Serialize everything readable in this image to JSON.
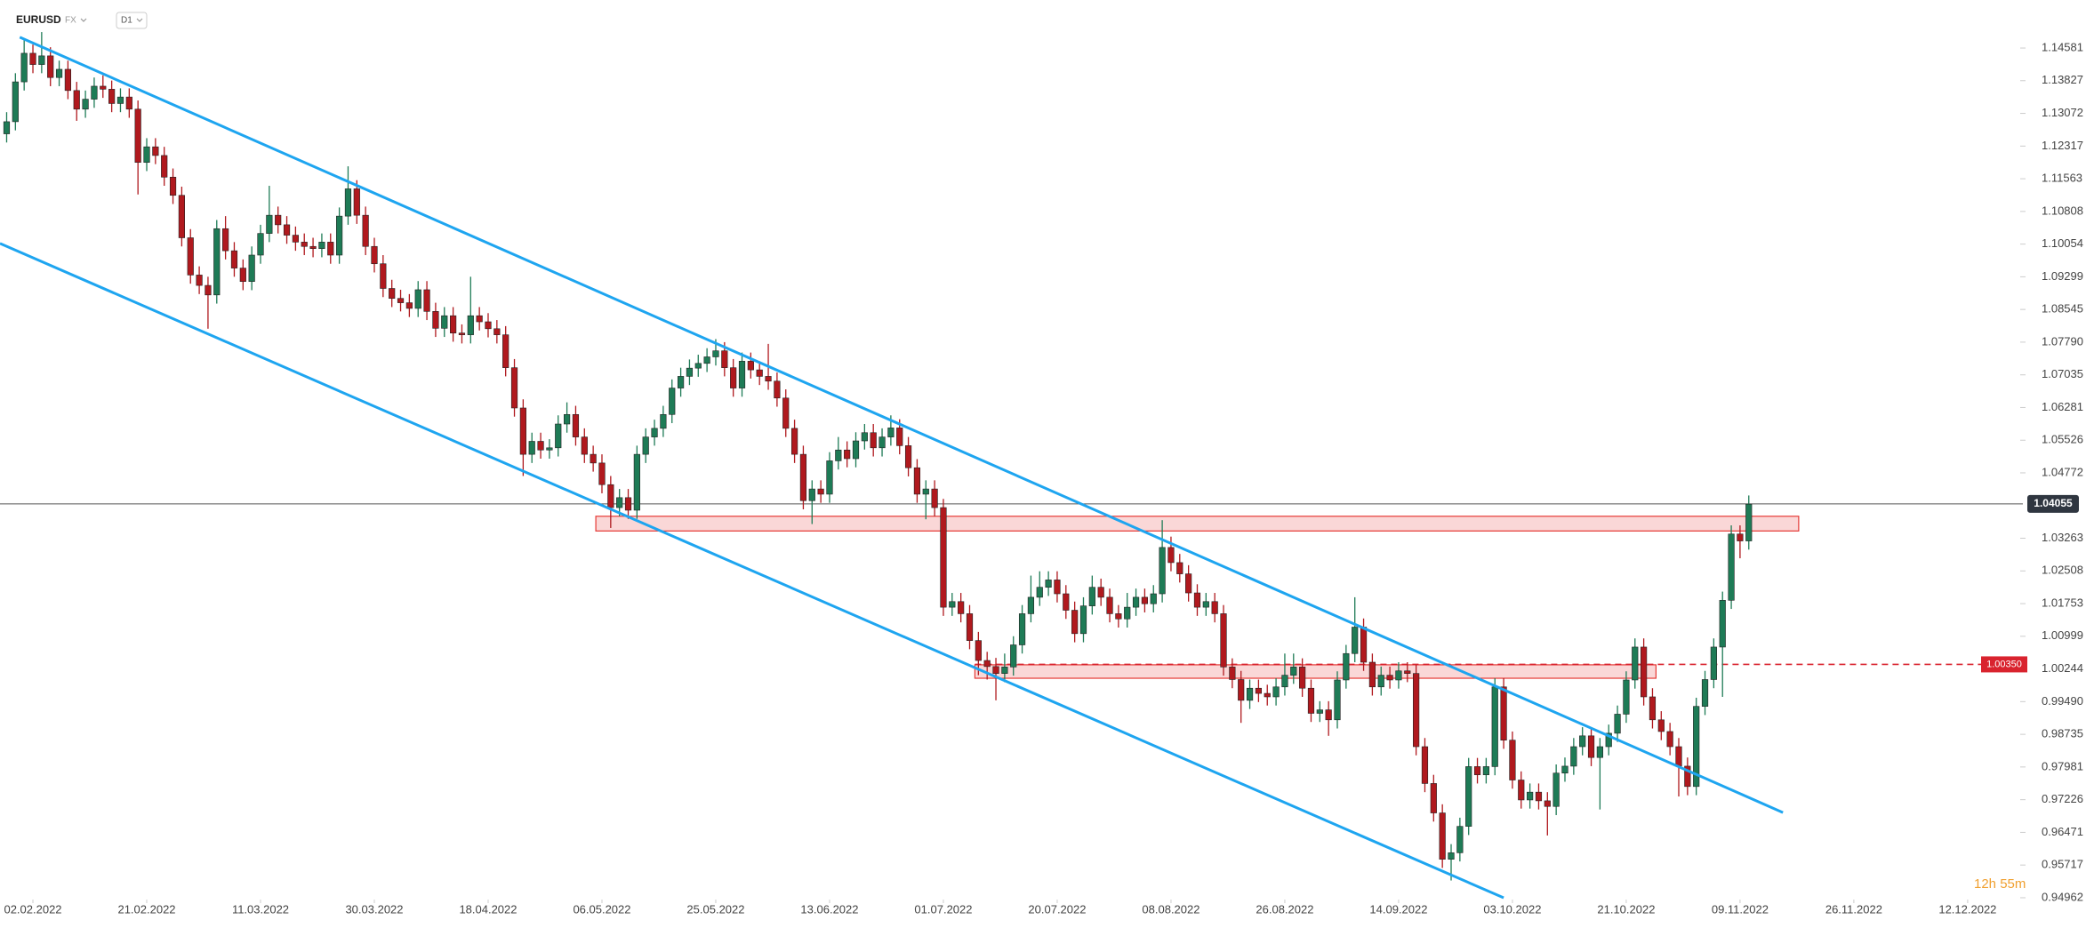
{
  "header": {
    "symbol": "EURUSD",
    "market": "FX",
    "interval": "D1"
  },
  "timer": "12h 55m",
  "chart_data": {
    "type": "candlestick",
    "up_color": "#1e7b56",
    "down_color": "#b0191e",
    "xlim": [
      -0.76,
      229.8
    ],
    "xticks": [
      {
        "value": 3,
        "label": "02.02.2022"
      },
      {
        "value": 16,
        "label": "21.02.2022"
      },
      {
        "value": 29,
        "label": "11.03.2022"
      },
      {
        "value": 42,
        "label": "30.03.2022"
      },
      {
        "value": 55,
        "label": "18.04.2022"
      },
      {
        "value": 68,
        "label": "06.05.2022"
      },
      {
        "value": 81,
        "label": "25.05.2022"
      },
      {
        "value": 94,
        "label": "13.06.2022"
      },
      {
        "value": 107,
        "label": "01.07.2022"
      },
      {
        "value": 120,
        "label": "20.07.2022"
      },
      {
        "value": 133,
        "label": "08.08.2022"
      },
      {
        "value": 146,
        "label": "26.08.2022"
      },
      {
        "value": 159,
        "label": "14.09.2022"
      },
      {
        "value": 172,
        "label": "03.10.2022"
      },
      {
        "value": 185,
        "label": "21.10.2022"
      },
      {
        "value": 198,
        "label": "09.11.2022"
      },
      {
        "value": 211,
        "label": "26.11.2022"
      },
      {
        "value": 224,
        "label": "12.12.2022"
      }
    ],
    "ylim": [
      0.9492,
      1.1569
    ],
    "yticks": [
      1.14581,
      1.13827,
      1.13072,
      1.12317,
      1.11563,
      1.10808,
      1.10054,
      1.09299,
      1.08545,
      {
        "value": 1.0779,
        "label": "1.07790"
      },
      1.07035,
      1.06281,
      1.05526,
      1.04772,
      1.03263,
      1.02508,
      1.01753,
      1.00999,
      1.00244,
      {
        "value": 0.9949,
        "label": "0.99490"
      },
      0.98735,
      0.97981,
      0.97226,
      0.96471,
      0.95717,
      0.94962
    ],
    "current_price": 1.04055,
    "level": {
      "value": 1.0035,
      "label": "1.00350",
      "color": "#d9232e"
    },
    "zones": [
      {
        "x": [
          67.3,
          204.7
        ],
        "y": [
          1.0343,
          1.0377
        ],
        "color": "#e53935"
      },
      {
        "x": [
          110.6,
          188.4
        ],
        "y": [
          1.0003,
          1.0034
        ],
        "color": "#e53935"
      }
    ],
    "trendlines": [
      {
        "x": [
          1.5,
          202.9
        ],
        "y": [
          1.1483,
          0.9693
        ],
        "color": "#1ea5f0"
      },
      {
        "x": [
          -0.76,
          171
        ],
        "y": [
          1.1007,
          0.9496
        ],
        "color": "#1ea5f0"
      }
    ],
    "candles": [
      [
        1.126,
        1.131,
        1.124,
        1.1288
      ],
      [
        1.1288,
        1.14,
        1.1268,
        1.138
      ],
      [
        1.138,
        1.148,
        1.136,
        1.1446
      ],
      [
        1.1446,
        1.1466,
        1.14,
        1.142
      ],
      [
        1.142,
        1.1495,
        1.14,
        1.144
      ],
      [
        1.144,
        1.146,
        1.137,
        1.139
      ],
      [
        1.139,
        1.1429,
        1.137,
        1.1409
      ],
      [
        1.1409,
        1.1429,
        1.134,
        1.136
      ],
      [
        1.136,
        1.138,
        1.129,
        1.1317
      ],
      [
        1.1317,
        1.136,
        1.1297,
        1.134
      ],
      [
        1.134,
        1.139,
        1.132,
        1.137
      ],
      [
        1.137,
        1.1395,
        1.1343,
        1.1363
      ],
      [
        1.1363,
        1.1383,
        1.131,
        1.133
      ],
      [
        1.133,
        1.1365,
        1.131,
        1.1345
      ],
      [
        1.1345,
        1.1365,
        1.1297,
        1.1317
      ],
      [
        1.1317,
        1.1337,
        1.112,
        1.1194
      ],
      [
        1.1194,
        1.125,
        1.1174,
        1.123
      ],
      [
        1.123,
        1.125,
        1.119,
        1.121
      ],
      [
        1.121,
        1.123,
        1.114,
        1.116
      ],
      [
        1.116,
        1.118,
        1.1098,
        1.1118
      ],
      [
        1.1118,
        1.1138,
        1.1,
        1.102
      ],
      [
        1.102,
        1.104,
        1.0914,
        1.0934
      ],
      [
        1.0934,
        1.0954,
        1.089,
        1.091
      ],
      [
        1.091,
        1.093,
        1.081,
        1.0888
      ],
      [
        1.0888,
        1.1061,
        1.0868,
        1.1041
      ],
      [
        1.1041,
        1.107,
        1.097,
        1.099
      ],
      [
        1.099,
        1.101,
        1.093,
        1.095
      ],
      [
        1.095,
        1.097,
        1.0899,
        1.0919
      ],
      [
        1.0919,
        1.1,
        1.0899,
        1.098
      ],
      [
        1.098,
        1.105,
        1.096,
        1.103
      ],
      [
        1.103,
        1.114,
        1.101,
        1.1072
      ],
      [
        1.1072,
        1.1092,
        1.103,
        1.105
      ],
      [
        1.105,
        1.107,
        1.1006,
        1.1026
      ],
      [
        1.1026,
        1.1046,
        1.099,
        1.101
      ],
      [
        1.101,
        1.103,
        1.098,
        1.1
      ],
      [
        1.1,
        1.102,
        1.0975,
        1.0995
      ],
      [
        1.0995,
        1.103,
        1.0975,
        1.101
      ],
      [
        1.101,
        1.103,
        1.096,
        1.098
      ],
      [
        1.098,
        1.109,
        1.096,
        1.107
      ],
      [
        1.107,
        1.1185,
        1.105,
        1.1133
      ],
      [
        1.1133,
        1.1153,
        1.1052,
        1.1072
      ],
      [
        1.1072,
        1.1092,
        1.098,
        1.1
      ],
      [
        1.1,
        1.102,
        1.094,
        1.096
      ],
      [
        1.096,
        1.098,
        1.0883,
        1.0903
      ],
      [
        1.0903,
        1.0923,
        1.086,
        1.088
      ],
      [
        1.088,
        1.09,
        1.085,
        1.087
      ],
      [
        1.087,
        1.089,
        1.0837,
        1.0857
      ],
      [
        1.0857,
        1.092,
        1.0837,
        1.09
      ],
      [
        1.09,
        1.092,
        1.083,
        1.085
      ],
      [
        1.085,
        1.087,
        1.0791,
        1.0811
      ],
      [
        1.0811,
        1.086,
        1.0791,
        1.084
      ],
      [
        1.084,
        1.086,
        1.078,
        1.08
      ],
      [
        1.08,
        1.082,
        1.0776,
        1.0796
      ],
      [
        1.0796,
        1.093,
        1.0776,
        1.084
      ],
      [
        1.084,
        1.086,
        1.0806,
        1.0826
      ],
      [
        1.0826,
        1.0846,
        1.079,
        1.081
      ],
      [
        1.081,
        1.083,
        1.0776,
        1.0796
      ],
      [
        1.0796,
        1.0816,
        1.07,
        1.072
      ],
      [
        1.072,
        1.074,
        1.0607,
        1.0627
      ],
      [
        1.0627,
        1.0647,
        1.047,
        1.052
      ],
      [
        1.052,
        1.057,
        1.05,
        1.055
      ],
      [
        1.055,
        1.057,
        1.051,
        1.053
      ],
      [
        1.053,
        1.0555,
        1.051,
        1.0535
      ],
      [
        1.0535,
        1.061,
        1.0515,
        1.059
      ],
      [
        1.059,
        1.064,
        1.057,
        1.0612
      ],
      [
        1.0612,
        1.0632,
        1.054,
        1.056
      ],
      [
        1.056,
        1.058,
        1.05,
        1.052
      ],
      [
        1.052,
        1.054,
        1.048,
        1.05
      ],
      [
        1.05,
        1.052,
        1.043,
        1.045
      ],
      [
        1.045,
        1.047,
        1.035,
        1.0397
      ],
      [
        1.0397,
        1.044,
        1.0377,
        1.042
      ],
      [
        1.042,
        1.044,
        1.0371,
        1.0391
      ],
      [
        1.0391,
        1.054,
        1.0371,
        1.052
      ],
      [
        1.052,
        1.058,
        1.05,
        1.056
      ],
      [
        1.056,
        1.06,
        1.054,
        1.058
      ],
      [
        1.058,
        1.0632,
        1.056,
        1.0612
      ],
      [
        1.0612,
        1.0693,
        1.0592,
        1.0673
      ],
      [
        1.0673,
        1.072,
        1.0653,
        1.07
      ],
      [
        1.07,
        1.0739,
        1.068,
        1.0719
      ],
      [
        1.0719,
        1.075,
        1.0699,
        1.073
      ],
      [
        1.073,
        1.0765,
        1.071,
        1.0745
      ],
      [
        1.0745,
        1.0786,
        1.0725,
        1.0759
      ],
      [
        1.0759,
        1.0779,
        1.07,
        1.072
      ],
      [
        1.072,
        1.074,
        1.0653,
        1.0673
      ],
      [
        1.0673,
        1.0755,
        1.0653,
        1.0735
      ],
      [
        1.0735,
        1.0755,
        1.0695,
        1.0715
      ],
      [
        1.0715,
        1.0735,
        1.068,
        1.07
      ],
      [
        1.07,
        1.0775,
        1.0669,
        1.0689
      ],
      [
        1.0689,
        1.0709,
        1.063,
        1.065
      ],
      [
        1.065,
        1.067,
        1.056,
        1.058
      ],
      [
        1.058,
        1.06,
        1.05,
        1.052
      ],
      [
        1.052,
        1.054,
        1.0393,
        1.0413
      ],
      [
        1.0413,
        1.046,
        1.0359,
        1.044
      ],
      [
        1.044,
        1.046,
        1.0408,
        1.0428
      ],
      [
        1.0428,
        1.0525,
        1.0408,
        1.0505
      ],
      [
        1.0505,
        1.056,
        1.0485,
        1.053
      ],
      [
        1.053,
        1.055,
        1.049,
        1.051
      ],
      [
        1.051,
        1.0571,
        1.049,
        1.0551
      ],
      [
        1.0551,
        1.059,
        1.0531,
        1.057
      ],
      [
        1.057,
        1.059,
        1.0515,
        1.0535
      ],
      [
        1.0535,
        1.058,
        1.0515,
        1.056
      ],
      [
        1.056,
        1.061,
        1.054,
        1.0581
      ],
      [
        1.0581,
        1.0601,
        1.052,
        1.054
      ],
      [
        1.054,
        1.056,
        1.0469,
        1.0489
      ],
      [
        1.0489,
        1.0509,
        1.0408,
        1.0428
      ],
      [
        1.0428,
        1.046,
        1.037,
        1.044
      ],
      [
        1.044,
        1.046,
        1.0377,
        1.0397
      ],
      [
        1.0397,
        1.0417,
        1.0147,
        1.0167
      ],
      [
        1.0167,
        1.02,
        1.0147,
        1.018
      ],
      [
        1.018,
        1.02,
        1.0132,
        1.0152
      ],
      [
        1.0152,
        1.0172,
        1.007,
        1.009
      ],
      [
        1.009,
        1.011,
        1.001,
        1.0044
      ],
      [
        1.0044,
        1.0064,
        1.0,
        1.003
      ],
      [
        1.003,
        1.005,
        0.9952,
        1.0014
      ],
      [
        1.0014,
        1.006,
        0.9994,
        1.0029
      ],
      [
        1.0029,
        1.01,
        1.0009,
        1.008
      ],
      [
        1.008,
        1.0172,
        1.006,
        1.0152
      ],
      [
        1.0152,
        1.024,
        1.0132,
        1.019
      ],
      [
        1.019,
        1.025,
        1.017,
        1.0213
      ],
      [
        1.0213,
        1.025,
        1.0193,
        1.023
      ],
      [
        1.023,
        1.025,
        1.0178,
        1.0198
      ],
      [
        1.0198,
        1.0218,
        1.014,
        1.016
      ],
      [
        1.016,
        1.018,
        1.0086,
        1.0106
      ],
      [
        1.0106,
        1.019,
        1.0086,
        1.017
      ],
      [
        1.017,
        1.024,
        1.015,
        1.0213
      ],
      [
        1.0213,
        1.0233,
        1.017,
        1.019
      ],
      [
        1.019,
        1.021,
        1.0132,
        1.0152
      ],
      [
        1.0152,
        1.0172,
        1.012,
        1.014
      ],
      [
        1.014,
        1.02,
        1.012,
        1.0167
      ],
      [
        1.0167,
        1.021,
        1.0147,
        1.019
      ],
      [
        1.019,
        1.021,
        1.0155,
        1.0175
      ],
      [
        1.0175,
        1.0218,
        1.0155,
        1.0198
      ],
      [
        1.0198,
        1.0368,
        1.0178,
        1.0305
      ],
      [
        1.0305,
        1.033,
        1.025,
        1.027
      ],
      [
        1.027,
        1.029,
        1.0224,
        1.0244
      ],
      [
        1.0244,
        1.0264,
        1.018,
        1.02
      ],
      [
        1.02,
        1.022,
        1.0147,
        1.0167
      ],
      [
        1.0167,
        1.02,
        1.0147,
        1.018
      ],
      [
        1.018,
        1.02,
        1.0132,
        1.0152
      ],
      [
        1.0152,
        1.0172,
        1.0009,
        1.0029
      ],
      [
        1.0029,
        1.0049,
        0.998,
        1.0
      ],
      [
        1.0,
        1.002,
        0.99,
        0.9952
      ],
      [
        0.9952,
        1.0,
        0.9932,
        0.998
      ],
      [
        0.998,
        1.0,
        0.9948,
        0.9968
      ],
      [
        0.9968,
        0.9988,
        0.994,
        0.996
      ],
      [
        0.996,
        1.0003,
        0.994,
        0.9983
      ],
      [
        0.9983,
        1.006,
        0.9963,
        1.001
      ],
      [
        1.001,
        1.006,
        0.999,
        1.0029
      ],
      [
        1.0029,
        1.0049,
        0.996,
        0.998
      ],
      [
        0.998,
        1.0,
        0.9902,
        0.9922
      ],
      [
        0.9922,
        0.995,
        0.9902,
        0.993
      ],
      [
        0.993,
        0.995,
        0.987,
        0.9907
      ],
      [
        0.9907,
        1.0019,
        0.9887,
        0.9999
      ],
      [
        0.9999,
        1.008,
        0.9979,
        1.006
      ],
      [
        1.006,
        1.019,
        1.004,
        1.0121
      ],
      [
        1.0121,
        1.0141,
        1.002,
        1.004
      ],
      [
        1.004,
        1.006,
        0.9963,
        0.9983
      ],
      [
        0.9983,
        1.003,
        0.9963,
        1.001
      ],
      [
        1.001,
        1.003,
        0.9979,
        0.9999
      ],
      [
        0.9999,
        1.004,
        0.9979,
        1.002
      ],
      [
        1.002,
        1.004,
        0.9994,
        1.0014
      ],
      [
        1.0014,
        1.0034,
        0.9825,
        0.9845
      ],
      [
        0.9845,
        0.9865,
        0.974,
        0.976
      ],
      [
        0.976,
        0.978,
        0.9672,
        0.9692
      ],
      [
        0.9692,
        0.9712,
        0.9565,
        0.9585
      ],
      [
        0.9585,
        0.962,
        0.9536,
        0.96
      ],
      [
        0.96,
        0.9681,
        0.958,
        0.9661
      ],
      [
        0.9661,
        0.9819,
        0.9641,
        0.9799
      ],
      [
        0.9799,
        0.9819,
        0.976,
        0.978
      ],
      [
        0.978,
        0.9819,
        0.976,
        0.9799
      ],
      [
        0.9799,
        1.0003,
        0.9779,
        0.9983
      ],
      [
        0.9983,
        1.0003,
        0.984,
        0.986
      ],
      [
        0.986,
        0.988,
        0.9748,
        0.9768
      ],
      [
        0.9768,
        0.9788,
        0.9702,
        0.9722
      ],
      [
        0.9722,
        0.976,
        0.9702,
        0.974
      ],
      [
        0.974,
        0.976,
        0.97,
        0.972
      ],
      [
        0.972,
        0.974,
        0.964,
        0.9707
      ],
      [
        0.9707,
        0.9804,
        0.9687,
        0.9784
      ],
      [
        0.9784,
        0.982,
        0.9764,
        0.98
      ],
      [
        0.98,
        0.9865,
        0.978,
        0.9845
      ],
      [
        0.9845,
        0.989,
        0.9825,
        0.987
      ],
      [
        0.987,
        0.989,
        0.98,
        0.982
      ],
      [
        0.982,
        0.9865,
        0.97,
        0.9845
      ],
      [
        0.9845,
        0.9896,
        0.9825,
        0.9876
      ],
      [
        0.9876,
        0.994,
        0.9856,
        0.992
      ],
      [
        0.992,
        1.0019,
        0.99,
        0.9999
      ],
      [
        0.9999,
        1.0095,
        0.9979,
        1.0075
      ],
      [
        1.0075,
        1.0095,
        0.994,
        0.996
      ],
      [
        0.996,
        0.998,
        0.9887,
        0.9907
      ],
      [
        0.9907,
        0.9927,
        0.986,
        0.988
      ],
      [
        0.988,
        0.99,
        0.9825,
        0.9845
      ],
      [
        0.9845,
        0.9865,
        0.973,
        0.98
      ],
      [
        0.98,
        0.982,
        0.9733,
        0.9753
      ],
      [
        0.9753,
        0.9958,
        0.9733,
        0.9938
      ],
      [
        0.9938,
        1.002,
        0.9918,
        1.0
      ],
      [
        1.0,
        1.0095,
        0.998,
        1.0075
      ],
      [
        1.0075,
        1.0203,
        0.996,
        1.0183
      ],
      [
        1.0183,
        1.0356,
        1.0163,
        1.0336
      ],
      [
        1.0336,
        1.0356,
        1.028,
        1.032
      ],
      [
        1.032,
        1.0425,
        1.03,
        1.0405
      ]
    ]
  }
}
